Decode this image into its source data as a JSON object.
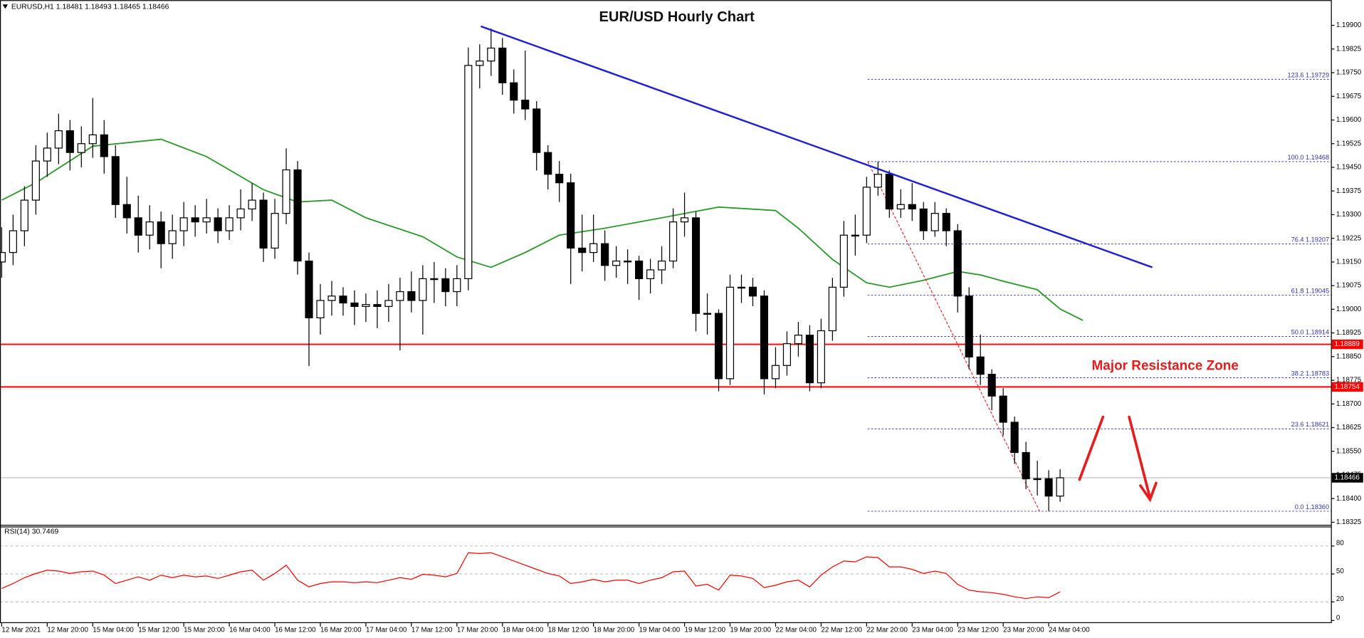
{
  "chart_data": [
    {
      "type": "candlestick",
      "header": "EURUSD,H1  1.18481 1.18493 1.18465 1.18466",
      "title": "EUR/USD Hourly Chart",
      "annotation": "Major Resistance Zone",
      "bull_color": "#ffffff",
      "bear_color": "#000000",
      "candles": [
        [
          1.1915,
          1.1926,
          1.191,
          1.1918
        ],
        [
          1.1918,
          1.193,
          1.1914,
          1.19249
        ],
        [
          1.19249,
          1.1939,
          1.192,
          1.19346
        ],
        [
          1.19346,
          1.1952,
          1.193,
          1.1947
        ],
        [
          1.1947,
          1.1956,
          1.1942,
          1.19511
        ],
        [
          1.19511,
          1.1962,
          1.1946,
          1.19566
        ],
        [
          1.19566,
          1.196,
          1.1944,
          1.19497
        ],
        [
          1.19497,
          1.1958,
          1.1945,
          1.19525
        ],
        [
          1.19525,
          1.1967,
          1.1948,
          1.19553
        ],
        [
          1.19553,
          1.196,
          1.1943,
          1.19484
        ],
        [
          1.19484,
          1.1952,
          1.1929,
          1.19332
        ],
        [
          1.19332,
          1.1942,
          1.1924,
          1.1929
        ],
        [
          1.1929,
          1.1936,
          1.1918,
          1.19235
        ],
        [
          1.19235,
          1.1933,
          1.1919,
          1.19277
        ],
        [
          1.19277,
          1.1931,
          1.1913,
          1.19208
        ],
        [
          1.19208,
          1.193,
          1.1916,
          1.19249
        ],
        [
          1.19249,
          1.1934,
          1.192,
          1.1929
        ],
        [
          1.1929,
          1.1933,
          1.1923,
          1.19277
        ],
        [
          1.19277,
          1.1935,
          1.1924,
          1.1929
        ],
        [
          1.1929,
          1.1932,
          1.1921,
          1.19249
        ],
        [
          1.19249,
          1.1933,
          1.1922,
          1.1929
        ],
        [
          1.1929,
          1.1938,
          1.1925,
          1.19318
        ],
        [
          1.19318,
          1.194,
          1.1928,
          1.19346
        ],
        [
          1.19346,
          1.1937,
          1.1915,
          1.19194
        ],
        [
          1.19194,
          1.1935,
          1.1916,
          1.19304
        ],
        [
          1.19304,
          1.1951,
          1.1927,
          1.19442
        ],
        [
          1.19442,
          1.1947,
          1.1911,
          1.19153
        ],
        [
          1.19153,
          1.1918,
          1.1882,
          1.18973
        ],
        [
          1.18973,
          1.1908,
          1.1892,
          1.19028
        ],
        [
          1.19028,
          1.1909,
          1.1898,
          1.19042
        ],
        [
          1.19042,
          1.1907,
          1.1898,
          1.1902
        ],
        [
          1.1902,
          1.1906,
          1.1895,
          1.19009
        ],
        [
          1.19009,
          1.1905,
          1.1896,
          1.19015
        ],
        [
          1.19015,
          1.1906,
          1.1894,
          1.19009
        ],
        [
          1.19009,
          1.1908,
          1.1896,
          1.19028
        ],
        [
          1.19028,
          1.191,
          1.1887,
          1.19056
        ],
        [
          1.19056,
          1.1912,
          1.1899,
          1.19028
        ],
        [
          1.19028,
          1.1914,
          1.1892,
          1.19097
        ],
        [
          1.19097,
          1.1915,
          1.1902,
          1.19097
        ],
        [
          1.19097,
          1.1913,
          1.1901,
          1.19056
        ],
        [
          1.19056,
          1.1914,
          1.1901,
          1.19097
        ],
        [
          1.19097,
          1.1983,
          1.1906,
          1.19773
        ],
        [
          1.19773,
          1.1984,
          1.197,
          1.19787
        ],
        [
          1.19787,
          1.1989,
          1.1974,
          1.19828
        ],
        [
          1.19828,
          1.1986,
          1.1968,
          1.19718
        ],
        [
          1.19718,
          1.1976,
          1.1962,
          1.19663
        ],
        [
          1.19663,
          1.1982,
          1.196,
          1.19635
        ],
        [
          1.19635,
          1.1966,
          1.1944,
          1.19497
        ],
        [
          1.19497,
          1.1952,
          1.1938,
          1.19428
        ],
        [
          1.19428,
          1.1947,
          1.1934,
          1.19401
        ],
        [
          1.19401,
          1.1943,
          1.1908,
          1.19194
        ],
        [
          1.19194,
          1.193,
          1.1912,
          1.1918
        ],
        [
          1.1918,
          1.193,
          1.1915,
          1.19208
        ],
        [
          1.19208,
          1.1925,
          1.1909,
          1.19139
        ],
        [
          1.19139,
          1.192,
          1.191,
          1.19153
        ],
        [
          1.19153,
          1.1919,
          1.1908,
          1.19153
        ],
        [
          1.19153,
          1.1917,
          1.1903,
          1.19097
        ],
        [
          1.19097,
          1.1916,
          1.1905,
          1.19125
        ],
        [
          1.19125,
          1.192,
          1.1908,
          1.19153
        ],
        [
          1.19153,
          1.1932,
          1.1913,
          1.19277
        ],
        [
          1.19277,
          1.1937,
          1.1923,
          1.1929
        ],
        [
          1.1929,
          1.1931,
          1.1893,
          1.18987
        ],
        [
          1.18987,
          1.1905,
          1.1892,
          1.18987
        ],
        [
          1.18987,
          1.19,
          1.1874,
          1.1878
        ],
        [
          1.1878,
          1.1911,
          1.1876,
          1.1907
        ],
        [
          1.1907,
          1.1911,
          1.1902,
          1.1907
        ],
        [
          1.1907,
          1.191,
          1.1901,
          1.19042
        ],
        [
          1.19042,
          1.1906,
          1.1873,
          1.1878
        ],
        [
          1.1878,
          1.1888,
          1.1875,
          1.18822
        ],
        [
          1.18822,
          1.1893,
          1.1879,
          1.18891
        ],
        [
          1.18891,
          1.1896,
          1.1885,
          1.18918
        ],
        [
          1.18918,
          1.1895,
          1.1874,
          1.18767
        ],
        [
          1.18767,
          1.1897,
          1.1875,
          1.18932
        ],
        [
          1.18932,
          1.191,
          1.189,
          1.1907
        ],
        [
          1.1907,
          1.1928,
          1.1904,
          1.19235
        ],
        [
          1.19235,
          1.193,
          1.1917,
          1.19235
        ],
        [
          1.19235,
          1.1942,
          1.1921,
          1.19387
        ],
        [
          1.19387,
          1.19468,
          1.1936,
          1.19428
        ],
        [
          1.19428,
          1.1944,
          1.1929,
          1.19318
        ],
        [
          1.19318,
          1.1938,
          1.1929,
          1.19332
        ],
        [
          1.19332,
          1.194,
          1.1928,
          1.19318
        ],
        [
          1.19318,
          1.1934,
          1.1922,
          1.19249
        ],
        [
          1.19249,
          1.1934,
          1.1923,
          1.19304
        ],
        [
          1.19304,
          1.1932,
          1.192,
          1.19249
        ],
        [
          1.19249,
          1.1927,
          1.1899,
          1.19042
        ],
        [
          1.19042,
          1.1907,
          1.1881,
          1.18849
        ],
        [
          1.18849,
          1.1892,
          1.1876,
          1.18794
        ],
        [
          1.18794,
          1.1881,
          1.1868,
          1.18725
        ],
        [
          1.18725,
          1.1875,
          1.186,
          1.18642
        ],
        [
          1.18642,
          1.1866,
          1.1851,
          1.18546
        ],
        [
          1.18546,
          1.1858,
          1.1843,
          1.18463
        ],
        [
          1.18463,
          1.1852,
          1.1841,
          1.18463
        ],
        [
          1.18463,
          1.1849,
          1.1836,
          1.18408
        ],
        [
          1.18408,
          1.18493,
          1.1839,
          1.18466
        ]
      ],
      "xlim": [
        -0.15,
        116.8
      ],
      "xticks": [
        {
          "value": 0,
          "label": "12 Mar 2021"
        },
        {
          "value": 4,
          "label": "12 Mar 20:00"
        },
        {
          "value": 8,
          "label": "15 Mar 04:00"
        },
        {
          "value": 12,
          "label": "15 Mar 12:00"
        },
        {
          "value": 16,
          "label": "15 Mar 20:00"
        },
        {
          "value": 20,
          "label": "16 Mar 04:00"
        },
        {
          "value": 24,
          "label": "16 Mar 12:00"
        },
        {
          "value": 28,
          "label": "16 Mar 20:00"
        },
        {
          "value": 32,
          "label": "17 Mar 04:00"
        },
        {
          "value": 36,
          "label": "17 Mar 12:00"
        },
        {
          "value": 40,
          "label": "17 Mar 20:00"
        },
        {
          "value": 44,
          "label": "18 Mar 04:00"
        },
        {
          "value": 48,
          "label": "18 Mar 12:00"
        },
        {
          "value": 52,
          "label": "18 Mar 20:00"
        },
        {
          "value": 56,
          "label": "19 Mar 04:00"
        },
        {
          "value": 60,
          "label": "19 Mar 12:00"
        },
        {
          "value": 64,
          "label": "19 Mar 20:00"
        },
        {
          "value": 68,
          "label": "22 Mar 04:00"
        },
        {
          "value": 72,
          "label": "22 Mar 12:00"
        },
        {
          "value": 76,
          "label": "22 Mar 20:00"
        },
        {
          "value": 80,
          "label": "23 Mar 04:00"
        },
        {
          "value": 84,
          "label": "23 Mar 12:00"
        },
        {
          "value": 88,
          "label": "23 Mar 20:00"
        },
        {
          "value": 92,
          "label": "24 Mar 04:00"
        }
      ],
      "ylim": [
        1.18317,
        1.1998
      ],
      "yticks": [
        1.18325,
        {
          "value": 1.184,
          "label": "1.18400"
        },
        1.18475,
        {
          "value": 1.1855,
          "label": "1.18550"
        },
        1.18625,
        {
          "value": 1.187,
          "label": "1.18700"
        },
        1.18775,
        {
          "value": 1.1885,
          "label": "1.18850"
        },
        1.18925,
        {
          "value": 1.19,
          "label": "1.19000"
        },
        1.19075,
        {
          "value": 1.1915,
          "label": "1.19150"
        },
        1.19225,
        {
          "value": 1.193,
          "label": "1.19300"
        },
        1.19375,
        {
          "value": 1.1945,
          "label": "1.19450"
        },
        1.19525,
        {
          "value": 1.196,
          "label": "1.19600"
        },
        1.19675,
        {
          "value": 1.1975,
          "label": "1.19750"
        },
        1.19825,
        {
          "value": 1.199,
          "label": "1.19900"
        }
      ],
      "moving_average": {
        "color": "#2e9a2e",
        "x": [
          0,
          3,
          8,
          14,
          18,
          23,
          26,
          29,
          32,
          37,
          40,
          43,
          46,
          49,
          53,
          58,
          63,
          68,
          70,
          73,
          76,
          78,
          81,
          84,
          86,
          88,
          91,
          93,
          95
        ],
        "values": [
          1.19346,
          1.19401,
          1.19517,
          1.19539,
          1.19484,
          1.19379,
          1.1934,
          1.19346,
          1.1929,
          1.1923,
          1.19166,
          1.19133,
          1.1918,
          1.19235,
          1.19257,
          1.1929,
          1.19324,
          1.19313,
          1.19257,
          1.19158,
          1.19084,
          1.1907,
          1.19092,
          1.1912,
          1.19109,
          1.19089,
          1.19062,
          1.19001,
          1.18965
        ]
      },
      "trendline": {
        "color": "#1f1fd6",
        "x": [
          42.1,
          101.1
        ],
        "values": [
          1.19897,
          1.19133
        ]
      },
      "fib_line": {
        "color": "#e03030",
        "x": [
          76.1,
          91.2
        ],
        "values": [
          1.19468,
          1.1836
        ]
      },
      "fib_color": "#3333aa",
      "fib_levels": [
        {
          "value": 1.19729,
          "label": "123.6 1.19729"
        },
        {
          "value": 1.19468,
          "label": "100.0 1.19468"
        },
        {
          "value": 1.19207,
          "label": "76.4 1.19207"
        },
        {
          "value": 1.19045,
          "label": "61.8 1.19045"
        },
        {
          "value": 1.18914,
          "label": "50.0 1.18914"
        },
        {
          "value": 1.18783,
          "label": "38.2 1.18783"
        },
        {
          "value": 1.18621,
          "label": "23.6 1.18621"
        },
        {
          "value": 1.1836,
          "label": "0.0 1.18360"
        }
      ],
      "resistance_lines": {
        "color": "#ff0000",
        "values": [
          1.18889,
          1.18754
        ]
      },
      "last_price": 1.18466
    },
    {
      "type": "line",
      "label": "RSI(14) 30.7469",
      "color": "#ff0000",
      "values": [
        34.4,
        39.7,
        46.0,
        50.5,
        54.0,
        53.1,
        50.5,
        52.3,
        53.1,
        48.7,
        39.7,
        43.3,
        46.9,
        43.3,
        48.7,
        46.0,
        48.7,
        46.9,
        47.8,
        45.1,
        48.7,
        52.3,
        54.0,
        43.3,
        50.5,
        59.4,
        43.3,
        36.1,
        39.7,
        41.5,
        41.5,
        40.6,
        41.5,
        40.6,
        43.3,
        46.0,
        44.2,
        49.6,
        48.7,
        46.9,
        50.5,
        72.8,
        71.9,
        72.8,
        68.4,
        63.9,
        59.4,
        54.9,
        50.5,
        47.8,
        39.7,
        41.5,
        44.2,
        41.5,
        43.3,
        43.3,
        39.7,
        43.3,
        46.0,
        52.3,
        53.1,
        37.0,
        38.8,
        32.6,
        48.7,
        47.8,
        45.1,
        35.3,
        37.9,
        41.5,
        43.3,
        36.1,
        48.7,
        57.6,
        63.9,
        63.0,
        68.4,
        67.5,
        57.6,
        57.6,
        54.9,
        50.5,
        53.1,
        50.5,
        38.8,
        32.6,
        30.8,
        29.9,
        28.1,
        25.4,
        23.6,
        25.4,
        24.5,
        30.7469
      ],
      "ylim": [
        0,
        100
      ],
      "yticks": [
        0,
        20,
        50,
        80
      ],
      "levels": [
        20,
        50,
        80
      ]
    }
  ]
}
